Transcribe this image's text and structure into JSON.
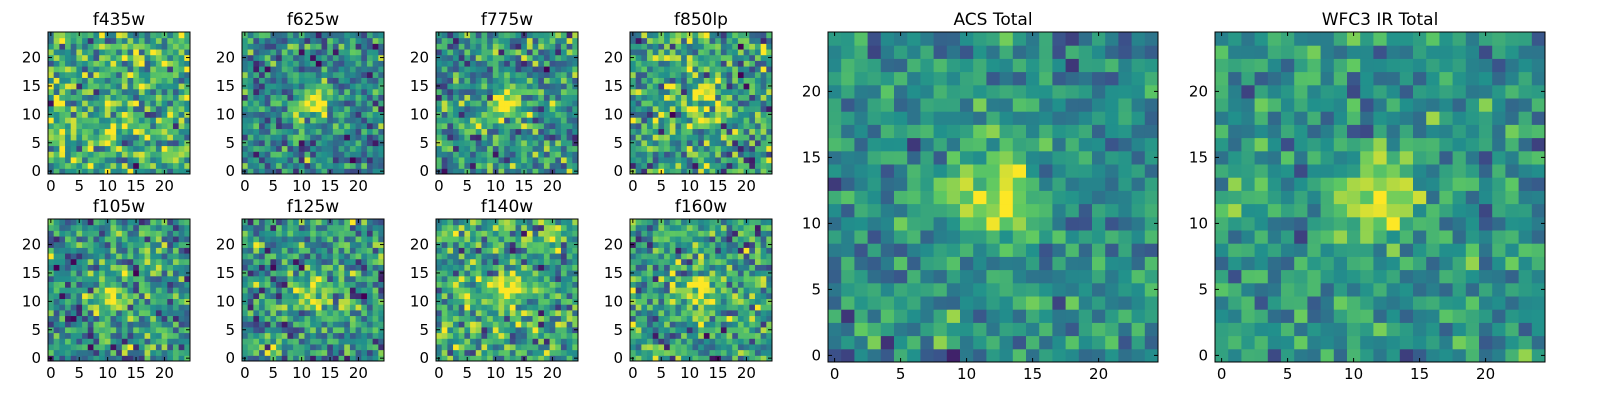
{
  "chart_data": {
    "type": "heatmap",
    "colormap": "viridis",
    "colormap_stops": [
      "#440154",
      "#3b528b",
      "#21918c",
      "#5ec962",
      "#fde725"
    ],
    "pixel_grid": 25,
    "panels": [
      {
        "id": "f435w",
        "title": "f435w",
        "size": "small",
        "x_ticks": [
          "0",
          "5",
          "10",
          "15",
          "20"
        ],
        "y_ticks": [
          "0",
          "5",
          "10",
          "15",
          "20"
        ],
        "peak": [
          12,
          12
        ],
        "peak_amplitude": 0.05,
        "background": 0.62,
        "noise": 0.22,
        "seed": 11
      },
      {
        "id": "f625w",
        "title": "f625w",
        "size": "small",
        "x_ticks": [
          "0",
          "5",
          "10",
          "15",
          "20"
        ],
        "y_ticks": [
          "0",
          "5",
          "10",
          "15",
          "20"
        ],
        "peak": [
          12,
          12
        ],
        "peak_amplitude": 0.5,
        "background": 0.45,
        "noise": 0.18,
        "seed": 23
      },
      {
        "id": "f775w",
        "title": "f775w",
        "size": "small",
        "x_ticks": [
          "0",
          "5",
          "10",
          "15",
          "20"
        ],
        "y_ticks": [
          "0",
          "5",
          "10",
          "15",
          "20"
        ],
        "peak": [
          12,
          12
        ],
        "peak_amplitude": 0.45,
        "background": 0.5,
        "noise": 0.2,
        "seed": 37
      },
      {
        "id": "f850lp",
        "title": "f850lp",
        "size": "small",
        "x_ticks": [
          "0",
          "5",
          "10",
          "15",
          "20"
        ],
        "y_ticks": [
          "0",
          "5",
          "10",
          "15",
          "20"
        ],
        "peak": [
          12,
          12
        ],
        "peak_amplitude": 0.4,
        "background": 0.55,
        "noise": 0.22,
        "seed": 41
      },
      {
        "id": "f105w",
        "title": "f105w",
        "size": "small",
        "x_ticks": [
          "0",
          "5",
          "10",
          "15",
          "20"
        ],
        "y_ticks": [
          "0",
          "5",
          "10",
          "15",
          "20"
        ],
        "peak": [
          11,
          11
        ],
        "peak_amplitude": 0.45,
        "background": 0.5,
        "noise": 0.2,
        "seed": 53
      },
      {
        "id": "f125w",
        "title": "f125w",
        "size": "small",
        "x_ticks": [
          "0",
          "5",
          "10",
          "15",
          "20"
        ],
        "y_ticks": [
          "0",
          "5",
          "10",
          "15",
          "20"
        ],
        "peak": [
          12,
          12
        ],
        "peak_amplitude": 0.45,
        "background": 0.52,
        "noise": 0.2,
        "seed": 67
      },
      {
        "id": "f140w",
        "title": "f140w",
        "size": "small",
        "x_ticks": [
          "0",
          "5",
          "10",
          "15",
          "20"
        ],
        "y_ticks": [
          "0",
          "5",
          "10",
          "15",
          "20"
        ],
        "peak": [
          12,
          12
        ],
        "peak_amplitude": 0.35,
        "background": 0.58,
        "noise": 0.2,
        "seed": 71
      },
      {
        "id": "f160w",
        "title": "f160w",
        "size": "small",
        "x_ticks": [
          "0",
          "5",
          "10",
          "15",
          "20"
        ],
        "y_ticks": [
          "0",
          "5",
          "10",
          "15",
          "20"
        ],
        "peak": [
          12,
          12
        ],
        "peak_amplitude": 0.4,
        "background": 0.56,
        "noise": 0.2,
        "seed": 83
      },
      {
        "id": "acs-total",
        "title": "ACS Total",
        "size": "large",
        "x_ticks": [
          "0",
          "5",
          "10",
          "15",
          "20"
        ],
        "y_ticks": [
          "0",
          "5",
          "10",
          "15",
          "20"
        ],
        "peak": [
          12,
          12
        ],
        "peak_amplitude": 0.5,
        "background": 0.48,
        "noise": 0.13,
        "seed": 97
      },
      {
        "id": "wfc3-ir-total",
        "title": "WFC3 IR Total",
        "size": "large",
        "x_ticks": [
          "0",
          "5",
          "10",
          "15",
          "20"
        ],
        "y_ticks": [
          "0",
          "5",
          "10",
          "15",
          "20"
        ],
        "peak": [
          12,
          12
        ],
        "peak_amplitude": 0.45,
        "background": 0.52,
        "noise": 0.13,
        "seed": 101
      }
    ]
  }
}
